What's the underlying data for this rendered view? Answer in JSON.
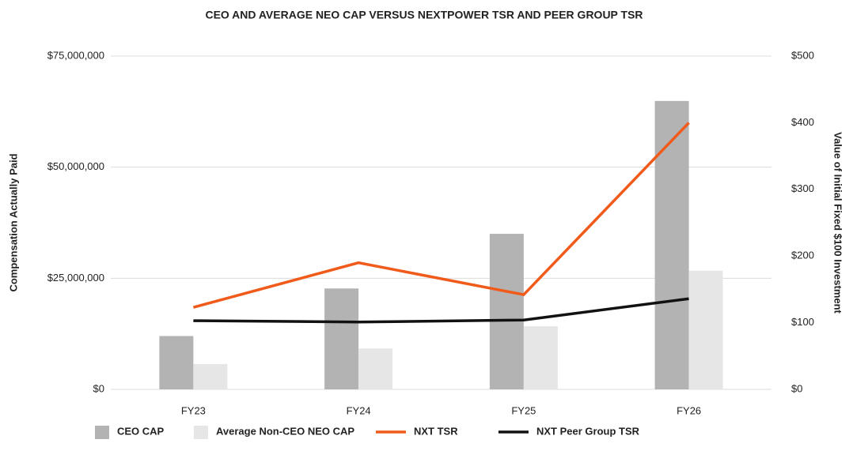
{
  "chart_data": {
    "type": "bar_line",
    "title": "CEO AND AVERAGE NEO CAP VERSUS NEXTPOWER TSR AND PEER GROUP TSR",
    "ylabel": "Compensation Actually Paid",
    "y2label": "Value of Initial Fixed $100 Investment",
    "categories": [
      "FY23",
      "FY24",
      "FY25",
      "FY26"
    ],
    "series": [
      {
        "name": "CEO CAP",
        "type": "bar",
        "color": "#b3b3b3",
        "values": [
          12000000,
          22700000,
          35000000,
          64900000
        ]
      },
      {
        "name": "Average Non-CEO NEO CAP",
        "type": "bar",
        "color": "#e6e6e6",
        "values": [
          5700000,
          9200000,
          14200000,
          26700000
        ]
      },
      {
        "name": "NXT TSR",
        "type": "line",
        "axis": "y2",
        "color": "#f05a1a",
        "values": [
          123,
          190,
          142,
          400
        ]
      },
      {
        "name": "NXT Peer Group TSR",
        "type": "line",
        "axis": "y2",
        "color": "#111111",
        "values": [
          103,
          101,
          104,
          136
        ]
      }
    ],
    "ylim": [
      0,
      75000000
    ],
    "yticks": [
      {
        "value": 0,
        "label": "$0"
      },
      {
        "value": 25000000,
        "label": "$25,000,000"
      },
      {
        "value": 50000000,
        "label": "$50,000,000"
      },
      {
        "value": 75000000,
        "label": "$75,000,000"
      }
    ],
    "y2lim": [
      0,
      500
    ],
    "y2ticks": [
      {
        "value": 0,
        "label": "$0"
      },
      {
        "value": 100,
        "label": "$100"
      },
      {
        "value": 200,
        "label": "$200"
      },
      {
        "value": 300,
        "label": "$300"
      },
      {
        "value": 400,
        "label": "$400"
      },
      {
        "value": 500,
        "label": "$500"
      }
    ],
    "grid": true,
    "legend": "bottom"
  }
}
